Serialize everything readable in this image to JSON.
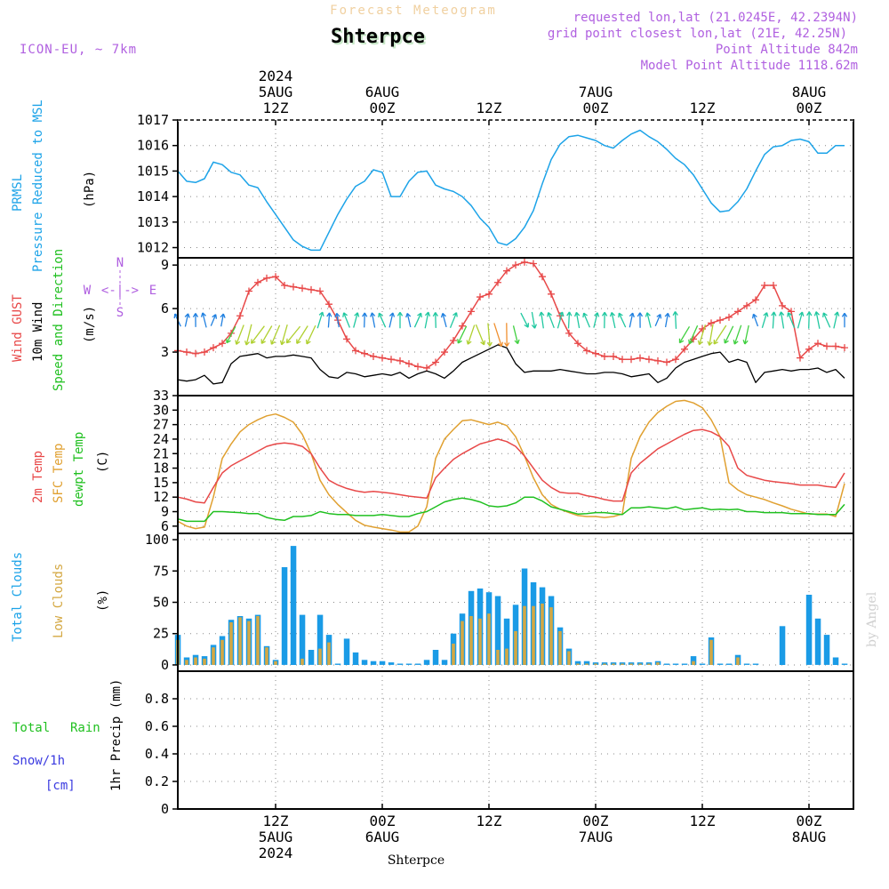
{
  "header": {
    "product": "Forecast Meteogram",
    "model": "ICON-EU, ~ 7km",
    "location": "Shterpce",
    "requested": "requested lon,lat (21.0245E, 42.2394N)",
    "grid_point": "grid point closest lon,lat (21E, 42.25N)",
    "point_altitude": "Point Altitude 842m",
    "model_altitude": "Model Point Altitude 1118.62m",
    "credit": "by Angel",
    "footer_location": "Shterpce"
  },
  "time_axis": {
    "top_ticks": [
      {
        "h": 0,
        "lines": [
          "2024",
          "5AUG",
          "12Z"
        ]
      },
      {
        "h": 12,
        "lines": [
          "6AUG",
          "00Z"
        ]
      },
      {
        "h": 24,
        "lines": [
          "12Z"
        ]
      },
      {
        "h": 36,
        "lines": [
          "7AUG",
          "00Z"
        ]
      },
      {
        "h": 48,
        "lines": [
          "12Z"
        ]
      },
      {
        "h": 60,
        "lines": [
          "8AUG",
          "00Z"
        ]
      }
    ],
    "bottom_ticks": [
      {
        "h": 0,
        "lines": [
          "12Z",
          "5AUG",
          "2024"
        ]
      },
      {
        "h": 12,
        "lines": [
          "00Z",
          "6AUG"
        ]
      },
      {
        "h": 24,
        "lines": [
          "12Z"
        ]
      },
      {
        "h": 36,
        "lines": [
          "00Z",
          "7AUG"
        ]
      },
      {
        "h": 48,
        "lines": [
          "12Z"
        ]
      },
      {
        "h": 60,
        "lines": [
          "00Z",
          "8AUG"
        ]
      }
    ],
    "unit": "hours from 5AUG 12Z",
    "range": [
      -11,
      65
    ]
  },
  "panels": {
    "pressure": {
      "labels": [
        "PRMSL",
        "Pressure Reduced to MSL"
      ],
      "unit": "(hPa)",
      "ylim": [
        1011.6,
        1017
      ],
      "ticks": [
        1012,
        1013,
        1014,
        1015,
        1016,
        1017
      ]
    },
    "wind": {
      "labels": [
        "Wind GUST",
        "10m Wind",
        "Speed and Direction"
      ],
      "unit": "(m/s)",
      "compass": {
        "n": "N",
        "w": "W",
        "e": "E",
        "s": "S",
        "arrows": "<-|->"
      },
      "ylim": [
        0,
        9.5
      ],
      "ticks": [
        3,
        6,
        9
      ]
    },
    "temperature": {
      "labels": [
        "2m Temp",
        "SFC Temp",
        "dewpt Temp"
      ],
      "unit": "(C)",
      "ylim": [
        4.5,
        33
      ],
      "ticks": [
        6,
        9,
        12,
        15,
        18,
        21,
        24,
        27,
        30,
        33
      ]
    },
    "clouds": {
      "labels": [
        "Total Clouds",
        "Low Clouds"
      ],
      "unit": "(%)",
      "ylim": [
        -5,
        105
      ],
      "ticks": [
        0,
        25,
        50,
        75,
        100
      ]
    },
    "precip": {
      "labels": [
        "Total",
        "Rain",
        "Snow/1h",
        "[cm]"
      ],
      "unit": "1hr Precip (mm)",
      "ylim": [
        0,
        1.0
      ],
      "ticks": [
        0,
        0.2,
        0.4,
        0.6,
        0.8
      ],
      "tick_labels": [
        "0",
        "0.2",
        "0.4",
        "0.6",
        "0.8"
      ]
    }
  },
  "colors": {
    "pressure": "#1ca3e8",
    "gust": "#e84848",
    "wind": "#000000",
    "temp2m": "#e84848",
    "sfc": "#e0a030",
    "dewpt": "#20c020",
    "total_clouds": "#1a9be6",
    "low_clouds": "#d4a843",
    "model_label": "#b060e0",
    "grid": "#888888",
    "rain": "#20c020",
    "snow": "#3a3ae0"
  },
  "chart_data": [
    {
      "type": "line",
      "title": "PRMSL Pressure Reduced to MSL",
      "ylabel": "(hPa)",
      "ylim": [
        1011.6,
        1017
      ],
      "x": [
        -11,
        -10,
        -9,
        -8,
        -7,
        -6,
        -5,
        -4,
        -3,
        -2,
        -1,
        0,
        1,
        2,
        3,
        4,
        5,
        6,
        7,
        8,
        9,
        10,
        11,
        12,
        13,
        14,
        15,
        16,
        17,
        18,
        19,
        20,
        21,
        22,
        23,
        24,
        25,
        26,
        27,
        28,
        29,
        30,
        31,
        32,
        33,
        34,
        35,
        36,
        37,
        38,
        39,
        40,
        41,
        42,
        43,
        44,
        45,
        46,
        47,
        48,
        49,
        50,
        51,
        52,
        53,
        54,
        55,
        56,
        57,
        58,
        59,
        60,
        61,
        62,
        63,
        64
      ],
      "series": [
        {
          "name": "PRMSL",
          "values": [
            1015.0,
            1014.6,
            1014.55,
            1014.7,
            1015.35,
            1015.25,
            1014.95,
            1014.85,
            1014.45,
            1014.35,
            1013.8,
            1013.3,
            1012.8,
            1012.3,
            1012.05,
            1011.9,
            1011.9,
            1012.6,
            1013.3,
            1013.9,
            1014.4,
            1014.6,
            1015.05,
            1014.95,
            1014.0,
            1014.0,
            1014.6,
            1014.95,
            1015.0,
            1014.45,
            1014.3,
            1014.2,
            1014.0,
            1013.65,
            1013.15,
            1012.8,
            1012.2,
            1012.1,
            1012.35,
            1012.8,
            1013.45,
            1014.5,
            1015.45,
            1016.05,
            1016.35,
            1016.4,
            1016.3,
            1016.2,
            1016.0,
            1015.9,
            1016.2,
            1016.45,
            1016.6,
            1016.35,
            1016.15,
            1015.85,
            1015.5,
            1015.25,
            1014.85,
            1014.3,
            1013.75,
            1013.4,
            1013.45,
            1013.8,
            1014.3,
            1015.0,
            1015.65,
            1015.95,
            1016.0,
            1016.2,
            1016.25,
            1016.15,
            1015.7,
            1015.7,
            1016.0,
            1016.0
          ]
        }
      ]
    },
    {
      "type": "line",
      "title": "Wind GUST / 10m Wind Speed and Direction",
      "ylabel": "(m/s)",
      "ylim": [
        0,
        9.5
      ],
      "x": [
        -11,
        -10,
        -9,
        -8,
        -7,
        -6,
        -5,
        -4,
        -3,
        -2,
        -1,
        0,
        1,
        2,
        3,
        4,
        5,
        6,
        7,
        8,
        9,
        10,
        11,
        12,
        13,
        14,
        15,
        16,
        17,
        18,
        19,
        20,
        21,
        22,
        23,
        24,
        25,
        26,
        27,
        28,
        29,
        30,
        31,
        32,
        33,
        34,
        35,
        36,
        37,
        38,
        39,
        40,
        41,
        42,
        43,
        44,
        45,
        46,
        47,
        48,
        49,
        50,
        51,
        52,
        53,
        54,
        55,
        56,
        57,
        58,
        59,
        60,
        61,
        62,
        63,
        64
      ],
      "series": [
        {
          "name": "Wind GUST",
          "values": [
            3.1,
            3.0,
            2.9,
            3.0,
            3.3,
            3.6,
            4.3,
            5.5,
            7.2,
            7.8,
            8.1,
            8.2,
            7.6,
            7.5,
            7.4,
            7.3,
            7.2,
            6.3,
            5.2,
            3.9,
            3.1,
            2.9,
            2.7,
            2.6,
            2.5,
            2.4,
            2.2,
            2.0,
            1.9,
            2.3,
            3.0,
            3.8,
            4.8,
            5.8,
            6.8,
            7.0,
            7.8,
            8.6,
            9.0,
            9.2,
            9.1,
            8.2,
            7.0,
            5.5,
            4.3,
            3.6,
            3.1,
            2.9,
            2.7,
            2.7,
            2.5,
            2.5,
            2.6,
            2.5,
            2.4,
            2.3,
            2.5,
            3.2,
            3.9,
            4.6,
            5.0,
            5.2,
            5.4,
            5.8,
            6.2,
            6.6,
            7.6,
            7.6,
            6.2,
            5.8,
            2.6,
            3.2,
            3.6,
            3.4,
            3.4,
            3.3
          ]
        },
        {
          "name": "10m Wind",
          "values": [
            1.1,
            1.0,
            1.1,
            1.4,
            0.8,
            0.9,
            2.2,
            2.7,
            2.8,
            2.9,
            2.6,
            2.7,
            2.7,
            2.8,
            2.7,
            2.6,
            1.8,
            1.3,
            1.2,
            1.6,
            1.5,
            1.3,
            1.4,
            1.5,
            1.4,
            1.6,
            1.2,
            1.5,
            1.7,
            1.5,
            1.2,
            1.7,
            2.3,
            2.6,
            2.9,
            3.2,
            3.5,
            3.3,
            2.2,
            1.6,
            1.7,
            1.7,
            1.7,
            1.8,
            1.7,
            1.6,
            1.5,
            1.5,
            1.6,
            1.6,
            1.5,
            1.3,
            1.4,
            1.5,
            0.9,
            1.2,
            1.9,
            2.3,
            2.5,
            2.7,
            2.9,
            3.0,
            2.3,
            2.5,
            2.3,
            0.9,
            1.6,
            1.7,
            1.8,
            1.7,
            1.8,
            1.8,
            1.9,
            1.6,
            1.8,
            1.2
          ]
        }
      ]
    },
    {
      "type": "line",
      "title": "2m Temp / SFC Temp / dewpt Temp",
      "ylabel": "(C)",
      "ylim": [
        4.5,
        33
      ],
      "x": [
        -11,
        -10,
        -9,
        -8,
        -7,
        -6,
        -5,
        -4,
        -3,
        -2,
        -1,
        0,
        1,
        2,
        3,
        4,
        5,
        6,
        7,
        8,
        9,
        10,
        11,
        12,
        13,
        14,
        15,
        16,
        17,
        18,
        19,
        20,
        21,
        22,
        23,
        24,
        25,
        26,
        27,
        28,
        29,
        30,
        31,
        32,
        33,
        34,
        35,
        36,
        37,
        38,
        39,
        40,
        41,
        42,
        43,
        44,
        45,
        46,
        47,
        48,
        49,
        50,
        51,
        52,
        53,
        54,
        55,
        56,
        57,
        58,
        59,
        60,
        61,
        62,
        63,
        64
      ],
      "series": [
        {
          "name": "2m Temp",
          "values": [
            12.0,
            11.6,
            11.0,
            10.8,
            14.0,
            17.0,
            18.5,
            19.5,
            20.5,
            21.5,
            22.5,
            23.0,
            23.2,
            23.0,
            22.5,
            21.0,
            18.0,
            15.5,
            14.5,
            13.8,
            13.3,
            13.0,
            13.2,
            13.0,
            12.8,
            12.5,
            12.2,
            12.0,
            11.8,
            16.0,
            18.0,
            19.8,
            21.0,
            22.0,
            23.0,
            23.5,
            24.0,
            23.5,
            22.5,
            20.5,
            18.0,
            15.5,
            14.0,
            13.0,
            12.8,
            12.8,
            12.3,
            12.0,
            11.5,
            11.2,
            11.2,
            17.0,
            19.0,
            20.5,
            22.0,
            23.0,
            24.0,
            25.0,
            25.8,
            26.0,
            25.5,
            24.5,
            22.5,
            18.0,
            16.5,
            16.0,
            15.5,
            15.2,
            15.0,
            14.8,
            14.5,
            14.5,
            14.5,
            14.2,
            14.0,
            17.0
          ]
        },
        {
          "name": "SFC Temp",
          "values": [
            7.0,
            6.0,
            5.5,
            5.8,
            12.0,
            20.0,
            23.0,
            25.5,
            27.0,
            28.0,
            28.8,
            29.2,
            28.5,
            27.5,
            25.0,
            21.0,
            15.5,
            12.5,
            10.5,
            8.8,
            7.2,
            6.2,
            5.8,
            5.5,
            5.2,
            4.8,
            4.8,
            6.0,
            10.0,
            20.0,
            24.0,
            26.0,
            27.8,
            28.0,
            27.5,
            27.0,
            27.5,
            26.8,
            24.5,
            20.5,
            16.0,
            12.5,
            10.5,
            9.5,
            8.8,
            8.2,
            8.0,
            8.0,
            7.8,
            8.0,
            8.5,
            20.0,
            24.5,
            27.5,
            29.5,
            30.8,
            31.8,
            32.0,
            31.5,
            30.5,
            28.0,
            24.5,
            15.0,
            13.5,
            12.5,
            12.0,
            11.5,
            10.8,
            10.2,
            9.5,
            9.0,
            8.5,
            8.5,
            8.5,
            8.0,
            14.8
          ]
        },
        {
          "name": "dewpt Temp",
          "values": [
            7.5,
            7.0,
            7.0,
            7.0,
            9.0,
            9.0,
            8.9,
            8.8,
            8.6,
            8.6,
            7.8,
            7.4,
            7.2,
            8.0,
            8.0,
            8.2,
            9.0,
            8.6,
            8.4,
            8.4,
            8.2,
            8.2,
            8.2,
            8.4,
            8.2,
            8.0,
            8.0,
            8.6,
            9.0,
            10.0,
            11.0,
            11.5,
            11.8,
            11.5,
            11.0,
            10.2,
            10.0,
            10.2,
            10.8,
            12.0,
            12.0,
            11.2,
            10.0,
            9.5,
            9.0,
            8.5,
            8.6,
            8.8,
            8.8,
            8.6,
            8.4,
            9.8,
            9.8,
            10.0,
            9.8,
            9.6,
            10.0,
            9.4,
            9.6,
            9.8,
            9.4,
            9.5,
            9.4,
            9.5,
            9.0,
            9.0,
            8.8,
            8.8,
            8.8,
            8.6,
            8.6,
            8.6,
            8.4,
            8.4,
            8.4,
            10.5
          ]
        }
      ]
    },
    {
      "type": "bar",
      "title": "Total Clouds / Low Clouds",
      "ylabel": "(%)",
      "ylim": [
        -5,
        105
      ],
      "x": [
        -11,
        -10,
        -9,
        -8,
        -7,
        -6,
        -5,
        -4,
        -3,
        -2,
        -1,
        0,
        1,
        2,
        3,
        4,
        5,
        6,
        7,
        8,
        9,
        10,
        11,
        12,
        13,
        14,
        15,
        16,
        17,
        18,
        19,
        20,
        21,
        22,
        23,
        24,
        25,
        26,
        27,
        28,
        29,
        30,
        31,
        32,
        33,
        34,
        35,
        36,
        37,
        38,
        39,
        40,
        41,
        42,
        43,
        44,
        45,
        46,
        47,
        48,
        49,
        50,
        51,
        52,
        53,
        54,
        55,
        56,
        57,
        58,
        59,
        60,
        61,
        62,
        63,
        64
      ],
      "series": [
        {
          "name": "Total Clouds",
          "values": [
            24,
            6,
            8,
            7,
            16,
            23,
            36,
            39,
            37,
            40,
            15,
            4,
            78,
            95,
            40,
            12,
            40,
            24,
            1,
            21,
            10,
            4,
            3,
            3,
            2,
            1,
            1,
            1,
            4,
            12,
            4,
            25,
            41,
            59,
            61,
            58,
            55,
            37,
            48,
            77,
            66,
            62,
            55,
            30,
            13,
            3,
            3,
            2,
            2,
            2,
            2,
            2,
            2,
            2,
            3,
            1,
            1,
            1,
            7,
            1,
            22,
            1,
            1,
            8,
            1,
            1,
            0,
            0,
            31,
            0,
            0,
            56,
            37,
            24,
            6,
            1
          ]
        },
        {
          "name": "Low Clouds",
          "values": [
            20,
            4,
            6,
            5,
            14,
            20,
            34,
            38,
            35,
            39,
            14,
            3,
            0,
            0,
            5,
            0,
            13,
            18,
            0,
            0,
            0,
            0,
            0,
            0,
            0,
            0,
            0,
            0,
            0,
            0,
            0,
            17,
            35,
            39,
            37,
            41,
            12,
            13,
            27,
            47,
            47,
            49,
            46,
            27,
            11,
            1,
            1,
            1,
            1,
            1,
            1,
            1,
            1,
            1,
            2,
            0,
            0,
            0,
            3,
            0,
            20,
            0,
            0,
            6,
            0,
            0,
            0,
            0,
            0,
            0,
            0,
            0,
            0,
            0,
            0,
            0
          ]
        }
      ]
    },
    {
      "type": "bar",
      "title": "1hr Precip",
      "ylabel": "1hr Precip (mm)",
      "ylim": [
        0,
        1.0
      ],
      "x": [],
      "series": []
    }
  ]
}
